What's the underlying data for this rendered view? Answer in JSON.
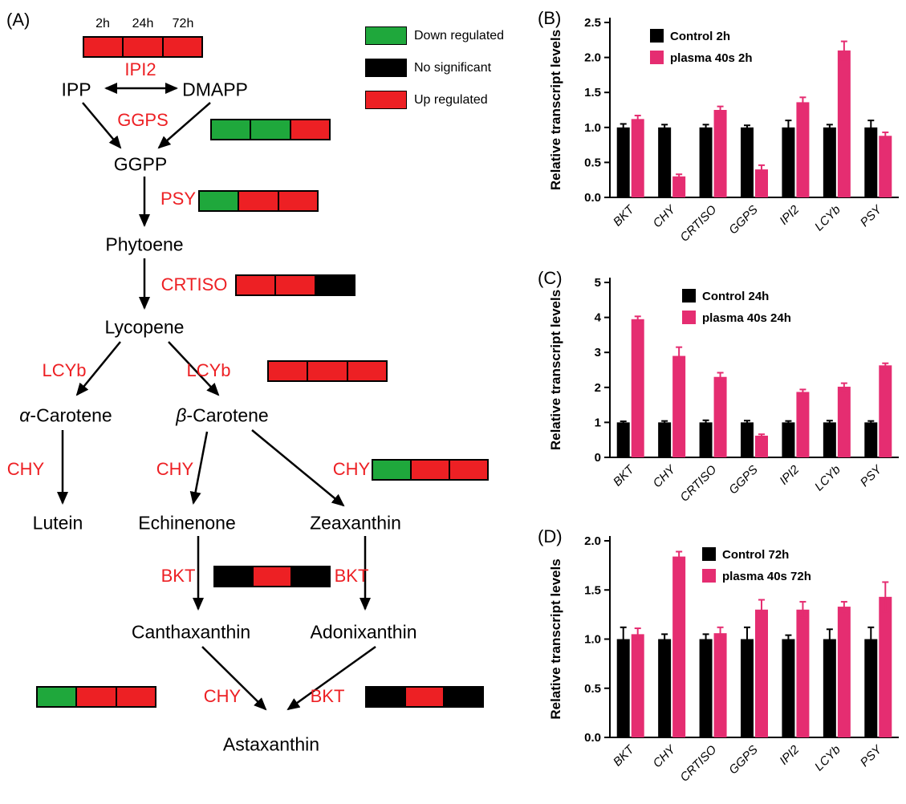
{
  "diagram": {
    "panel": "(A)",
    "time_labels": [
      "2h",
      "24h",
      "72h"
    ],
    "legend": [
      {
        "state": "down",
        "label": "Down regulated"
      },
      {
        "state": "no",
        "label": "No significant"
      },
      {
        "state": "up",
        "label": "Up regulated"
      }
    ],
    "state_colors": {
      "up": "#ED2024",
      "down": "#1FA83C",
      "no": "#000000"
    },
    "nodes": {
      "ipp": "IPP",
      "dmapp": "DMAPP",
      "ggpp": "GGPP",
      "phytoene": "Phytoene",
      "lycopene": "Lycopene",
      "alpha_prefix": "α",
      "beta_prefix": "β",
      "carotene_suffix": "-Carotene",
      "lutein": "Lutein",
      "echinenone": "Echinenone",
      "zeaxanthin": "Zeaxanthin",
      "canthaxanthin": "Canthaxanthin",
      "adonixanthin": "Adonixanthin",
      "astaxanthin": "Astaxanthin"
    },
    "enzymes": {
      "ipi2": "IPI2",
      "ggps": "GGPS",
      "psy": "PSY",
      "crtiso": "CRTISO",
      "lcyb": "LCYb",
      "chy": "CHY",
      "bkt": "BKT"
    },
    "strips": {
      "ipi2": [
        "up",
        "up",
        "up"
      ],
      "ggps": [
        "down",
        "down",
        "up"
      ],
      "psy": [
        "down",
        "up",
        "up"
      ],
      "crtiso": [
        "up",
        "up",
        "no"
      ],
      "lcyb": [
        "up",
        "up",
        "up"
      ],
      "chy_zeaxanthin": [
        "down",
        "up",
        "up"
      ],
      "bkt_middle": [
        "no",
        "up",
        "no"
      ],
      "chy_astaxanthin": [
        "down",
        "up",
        "up"
      ],
      "bkt_astaxanthin": [
        "no",
        "up",
        "no"
      ]
    }
  },
  "chart_data": [
    {
      "panel": "(B)",
      "type": "bar",
      "categories": [
        "BKT",
        "CHY",
        "CRTISO",
        "GGPS",
        "IPI2",
        "LCYb",
        "PSY"
      ],
      "series": [
        {
          "name": "Control 2h",
          "color": "#000000",
          "values": [
            1.0,
            1.0,
            1.0,
            1.0,
            1.0,
            1.0,
            1.0
          ],
          "errors": [
            0.05,
            0.04,
            0.04,
            0.03,
            0.1,
            0.04,
            0.1
          ]
        },
        {
          "name": "plasma 40s 2h",
          "color": "#E52D71",
          "values": [
            1.12,
            0.3,
            1.25,
            0.4,
            1.36,
            2.1,
            0.88
          ],
          "errors": [
            0.05,
            0.03,
            0.05,
            0.06,
            0.07,
            0.13,
            0.05
          ]
        }
      ],
      "ylabel": "Relative transcript levels",
      "ylim": [
        0,
        2.5
      ],
      "yticks": [
        0,
        0.5,
        1.0,
        1.5,
        2.0,
        2.5
      ],
      "ytick_labels": [
        "0.0",
        "0.5",
        "1.0",
        "1.5",
        "2.0",
        "2.5"
      ],
      "grid": false,
      "legend_position": "top-left-inside"
    },
    {
      "panel": "(C)",
      "type": "bar",
      "categories": [
        "BKT",
        "CHY",
        "CRTISO",
        "GGPS",
        "IPI2",
        "LCYb",
        "PSY"
      ],
      "series": [
        {
          "name": "Control 24h",
          "color": "#000000",
          "values": [
            1.0,
            1.0,
            1.0,
            1.0,
            1.0,
            1.0,
            1.0
          ],
          "errors": [
            0.03,
            0.04,
            0.06,
            0.05,
            0.04,
            0.05,
            0.04
          ]
        },
        {
          "name": "plasma 40s 24h",
          "color": "#E52D71",
          "values": [
            3.95,
            2.9,
            2.3,
            0.62,
            1.87,
            2.02,
            2.63
          ],
          "errors": [
            0.08,
            0.25,
            0.12,
            0.04,
            0.07,
            0.1,
            0.06
          ]
        }
      ],
      "ylabel": "Relative transcript levels",
      "ylim": [
        0,
        5
      ],
      "yticks": [
        0,
        1,
        2,
        3,
        4,
        5
      ],
      "ytick_labels": [
        "0",
        "1",
        "2",
        "3",
        "4",
        "5"
      ],
      "grid": false,
      "legend_position": "top-center-inside"
    },
    {
      "panel": "(D)",
      "type": "bar",
      "categories": [
        "BKT",
        "CHY",
        "CRTISO",
        "GGPS",
        "IPI2",
        "LCYb",
        "PSY"
      ],
      "series": [
        {
          "name": "Control 72h",
          "color": "#000000",
          "values": [
            1.0,
            1.0,
            1.0,
            1.0,
            1.0,
            1.0,
            1.0
          ],
          "errors": [
            0.12,
            0.05,
            0.05,
            0.12,
            0.04,
            0.1,
            0.12
          ]
        },
        {
          "name": "plasma 40s 72h",
          "color": "#E52D71",
          "values": [
            1.05,
            1.84,
            1.06,
            1.3,
            1.3,
            1.33,
            1.43
          ],
          "errors": [
            0.06,
            0.05,
            0.06,
            0.1,
            0.08,
            0.05,
            0.15
          ]
        }
      ],
      "ylabel": "Relative transcript levels",
      "ylim": [
        0,
        2.0
      ],
      "yticks": [
        0,
        0.5,
        1.0,
        1.5,
        2.0
      ],
      "ytick_labels": [
        "0.0",
        "0.5",
        "1.0",
        "1.5",
        "2.0"
      ],
      "grid": false,
      "legend_position": "top-right-inside"
    }
  ],
  "colors": {
    "control_bar": "#000000",
    "plasma_bar": "#E52D71",
    "up_regulated": "#ED2024",
    "down_regulated": "#1FA83C",
    "no_significant": "#000000"
  }
}
